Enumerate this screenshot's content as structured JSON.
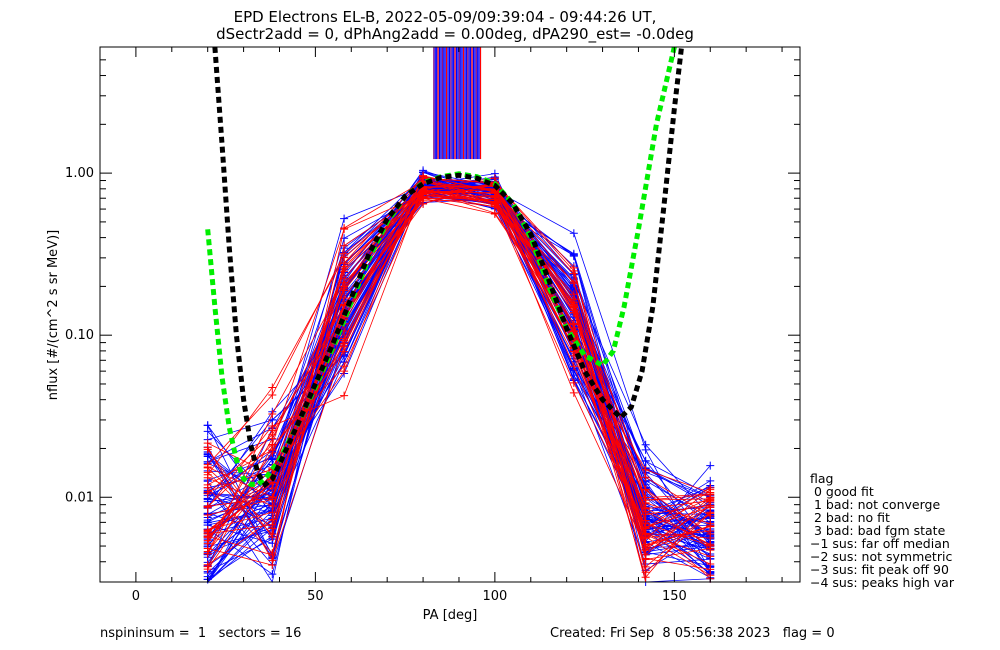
{
  "chart_data": {
    "type": "line",
    "title": "EPD Electrons EL-B, 2022-05-09/09:39:04 - 09:44:26 UT,",
    "subtitle": "dSectr2add = 0, dPhAng2add = 0.00deg, dPA290_est=  -0.0deg",
    "xlabel": "PA [deg]",
    "ylabel": "nflux [#/(cm^2 s sr MeV)]",
    "xlim": [
      -10,
      185
    ],
    "ylim": [
      0.003,
      6.0
    ],
    "y_scale": "log",
    "x_ticks": [
      0,
      50,
      100,
      150
    ],
    "x_tick_labels": [
      "0",
      "50",
      "100",
      "150"
    ],
    "y_ticks": [
      0.01,
      0.1,
      1.0
    ],
    "y_tick_labels": [
      "0.01",
      "0.10",
      "1.00"
    ],
    "grid": false,
    "pa_bins": [
      20,
      38,
      58,
      80,
      100,
      122,
      142,
      160
    ],
    "fit_green": {
      "x": [
        20,
        22,
        24,
        26,
        28,
        30,
        32,
        34,
        36,
        40,
        45,
        50,
        55,
        60,
        65,
        70,
        75,
        80,
        85,
        90,
        95,
        100,
        105,
        110,
        115,
        120,
        125,
        130,
        133,
        136,
        140,
        145,
        150
      ],
      "y": [
        0.45,
        0.15,
        0.055,
        0.027,
        0.017,
        0.013,
        0.012,
        0.012,
        0.013,
        0.017,
        0.028,
        0.048,
        0.085,
        0.16,
        0.3,
        0.5,
        0.72,
        0.87,
        0.95,
        0.99,
        0.95,
        0.86,
        0.65,
        0.4,
        0.2,
        0.11,
        0.075,
        0.065,
        0.08,
        0.15,
        0.45,
        2.0,
        8.0
      ]
    },
    "fit_black": {
      "x": [
        22,
        24,
        26,
        28,
        30,
        32,
        34,
        36,
        38,
        40,
        45,
        50,
        55,
        60,
        65,
        70,
        75,
        80,
        85,
        90,
        95,
        100,
        105,
        110,
        115,
        120,
        125,
        130,
        135,
        138,
        141,
        144,
        147,
        150,
        152
      ],
      "y": [
        6.0,
        1.5,
        0.35,
        0.1,
        0.04,
        0.021,
        0.014,
        0.012,
        0.013,
        0.016,
        0.028,
        0.05,
        0.09,
        0.17,
        0.32,
        0.52,
        0.72,
        0.86,
        0.94,
        0.97,
        0.93,
        0.84,
        0.65,
        0.42,
        0.22,
        0.11,
        0.06,
        0.04,
        0.031,
        0.036,
        0.06,
        0.15,
        0.6,
        2.5,
        6.0
      ]
    },
    "series_blue": {
      "x": [
        20,
        38,
        58,
        80,
        100,
        122,
        142,
        160
      ],
      "base": [
        0.008,
        0.011,
        0.15,
        0.82,
        0.76,
        0.13,
        0.007,
        0.0065
      ],
      "spread": [
        0.45,
        0.45,
        0.38,
        0.08,
        0.08,
        0.35,
        0.32,
        0.28
      ],
      "count": 70
    },
    "series_red": {
      "x": [
        20,
        38,
        58,
        80,
        100,
        122,
        142,
        160
      ],
      "base": [
        0.008,
        0.011,
        0.14,
        0.8,
        0.74,
        0.12,
        0.007,
        0.0065
      ],
      "spread": [
        0.45,
        0.45,
        0.38,
        0.1,
        0.1,
        0.35,
        0.32,
        0.28
      ],
      "count": 35
    },
    "spike_bars": {
      "x_min": 83,
      "x_max": 96,
      "y_bottom": 1.22,
      "count": 34
    },
    "legend_title": "flag",
    "legend_items": [
      " 0 good fit",
      " 1 bad: not converge",
      " 2 bad: no fit",
      " 3 bad: bad fgm state",
      "−1 sus: far off median",
      "−2 sus: not symmetric",
      "−3 sus: fit peak off 90",
      "−4 sus: peaks high var"
    ],
    "colors": {
      "series_blue": "#0000ff",
      "series_red": "#ff0000",
      "fit_green": "#00ee00",
      "fit_black": "#000000",
      "spike_colors": [
        "#0000ff",
        "#ff0000",
        "#800080"
      ]
    }
  },
  "footer": {
    "left": "nspininsum =  1   sectors = 16",
    "right": "Created: Fri Sep  8 05:56:38 2023   flag = 0"
  }
}
